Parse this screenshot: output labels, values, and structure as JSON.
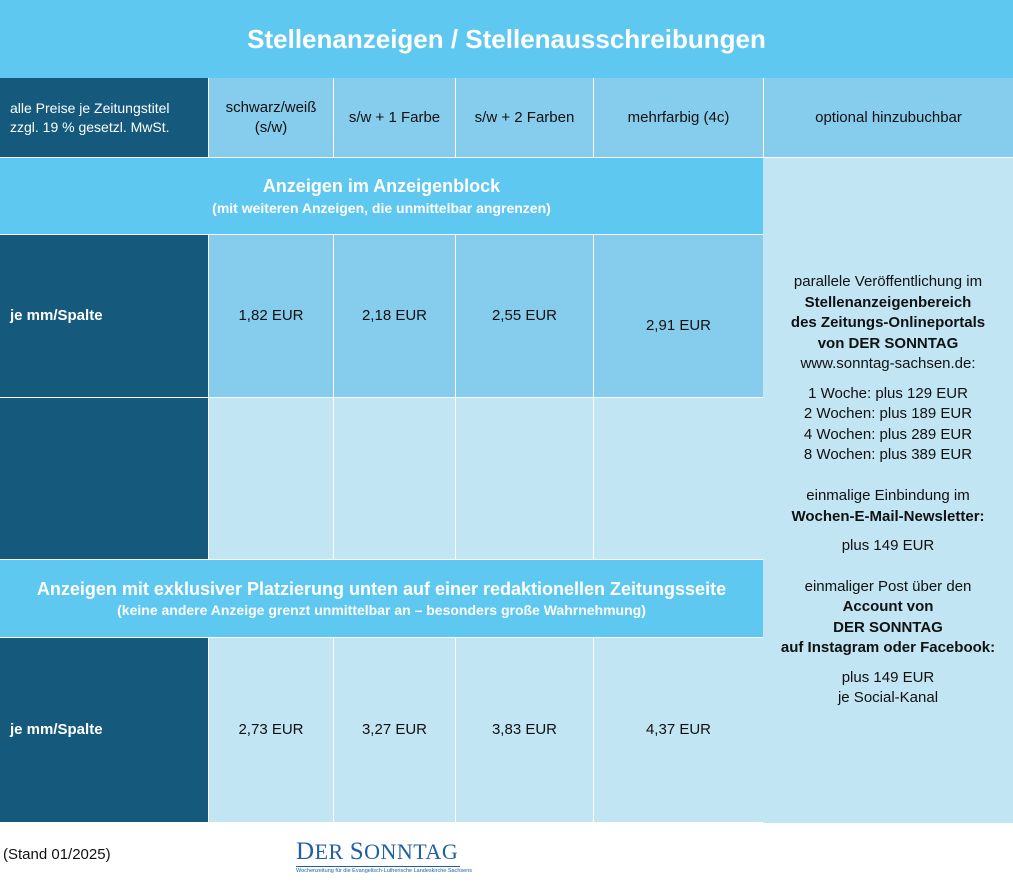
{
  "title": "Stellenanzeigen / Stellenausschreibungen",
  "header": {
    "note_line1": "alle Preise je Zeitungstitel",
    "note_line2": "zzgl. 19 % gesetzl. MwSt.",
    "col_sw_line1": "schwarz/weiß",
    "col_sw_line2": "(s/w)",
    "col_1c": "s/w + 1 Farbe",
    "col_2c": "s/w + 2 Farben",
    "col_4c": "mehrfarbig (4c)",
    "col_optional": "optional hinzubuchbar"
  },
  "block": {
    "title": "Anzeigen im Anzeigenblock",
    "subtitle": "(mit weiteren Anzeigen, die unmittelbar angrenzen)",
    "row_label": "je mm/Spalte",
    "prices": [
      "1,82 EUR",
      "2,18 EUR",
      "2,55 EUR",
      "2,91 EUR"
    ]
  },
  "exclusive": {
    "title": "Anzeigen mit exklusiver Platzierung unten auf einer redaktionellen Zeitungsseite",
    "subtitle": "(keine andere Anzeige grenzt unmittelbar an – besonders große Wahrnehmung)",
    "row_label": "je mm/Spalte",
    "prices": [
      "2,73 EUR",
      "3,27 EUR",
      "3,83 EUR",
      "4,37 EUR"
    ]
  },
  "optional": {
    "online_intro": "parallele Veröffentlichung im",
    "online_b1": "Stellenanzeigenbereich",
    "online_b2": "des Zeitungs-Onlineportals",
    "online_b3": "von DER SONNTAG",
    "online_url": "www.sonntag-sachsen.de:",
    "weeks": [
      "1 Woche: plus 129 EUR",
      "2 Wochen: plus 189 EUR",
      "4 Wochen: plus 289 EUR",
      "8 Wochen: plus 389 EUR"
    ],
    "newsletter_intro": "einmalige Einbindung im",
    "newsletter_b": "Wochen-E-Mail-Newsletter:",
    "newsletter_price": "plus 149 EUR",
    "social_intro": "einmaliger Post über den",
    "social_b1": "Account von",
    "social_b2": "DER SONNTAG",
    "social_b3": "auf Instagram oder Facebook:",
    "social_price": "plus 149 EUR",
    "social_per": "je Social-Kanal"
  },
  "footer": {
    "stand": "(Stand 01/2025)",
    "logo_d": "D",
    "logo_er": "ER ",
    "logo_s": "S",
    "logo_onntag": "ONNTAG",
    "logo_tagline": "Wochenzeitung für die Evangelisch-Lutherische Landeskirche Sachsens"
  },
  "colors": {
    "title_bg": "#5ec8f0",
    "dark": "#155a7c",
    "mid": "#86ccec",
    "light": "#c2e5f4",
    "logo": "#1f5fa4"
  }
}
